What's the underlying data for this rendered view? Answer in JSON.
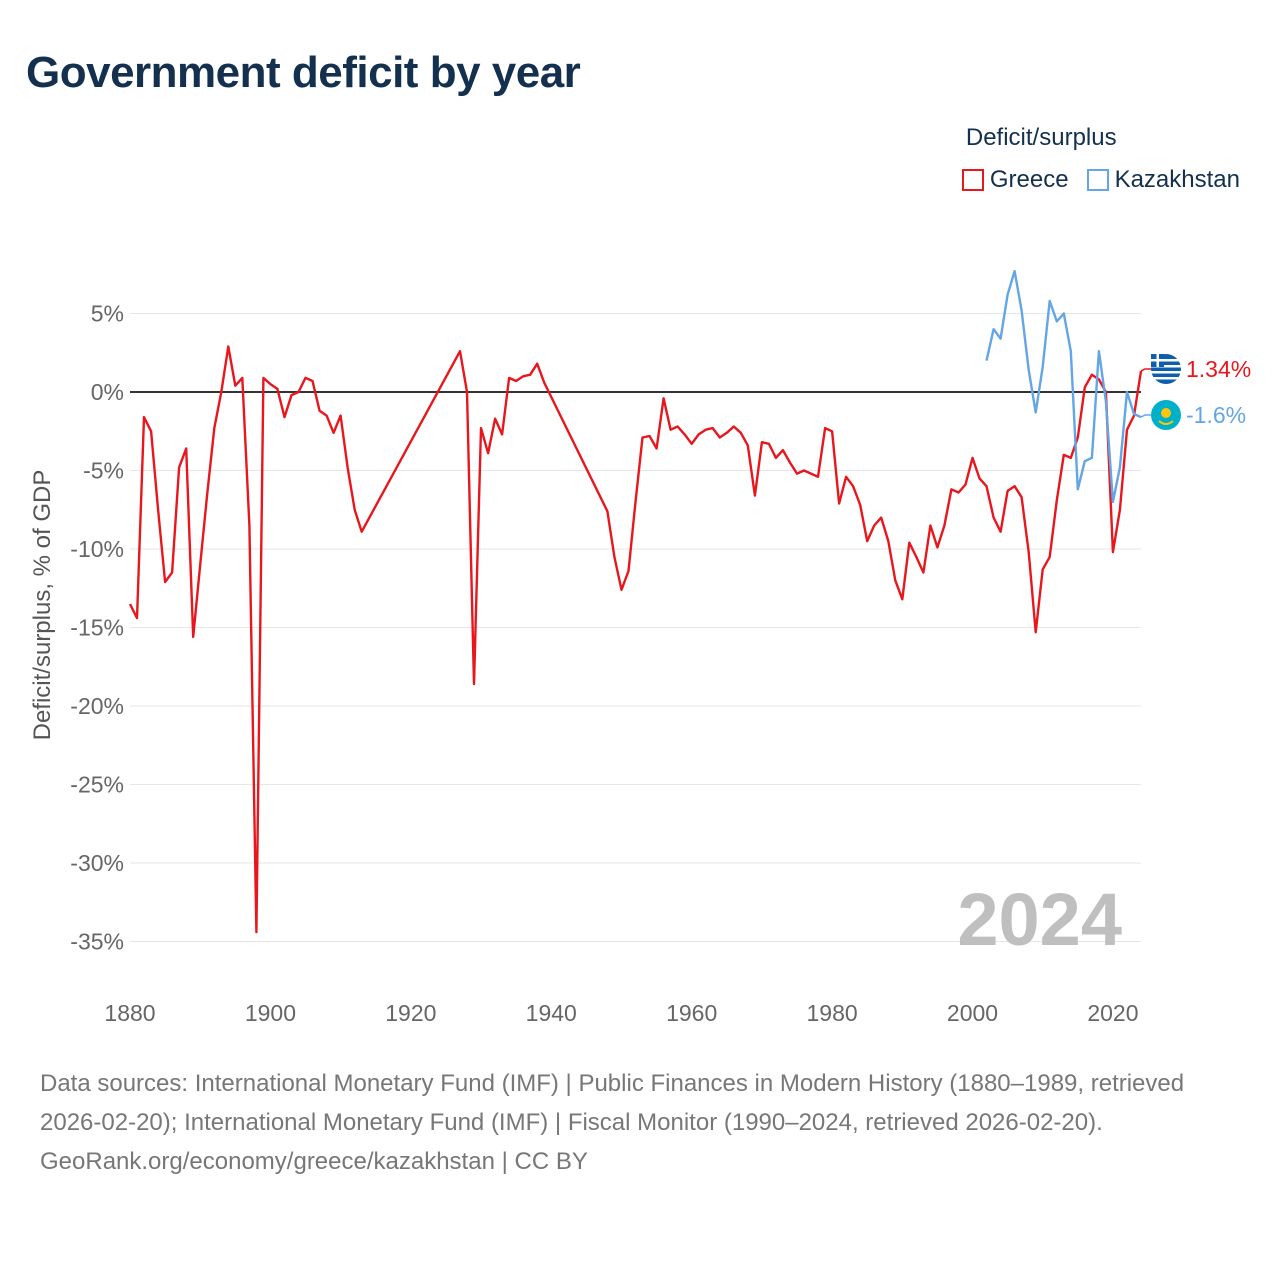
{
  "title": "Government deficit by year",
  "legend": {
    "title": "Deficit/surplus",
    "items": [
      {
        "label": "Greece",
        "color": "#e8171d"
      },
      {
        "label": "Kazakhstan",
        "color": "#63a5e6"
      }
    ]
  },
  "year_watermark": "2024",
  "footer": {
    "sources": "Data sources: International Monetary Fund (IMF) | Public Finances in Modern History (1880–1989, retrieved 2026-02-20); International Monetary Fund (IMF) | Fiscal Monitor (1990–2024, retrieved 2026-02-20).",
    "credit": "GeoRank.org/economy/greece/kazakhstan | CC BY"
  },
  "chart_data": {
    "type": "line",
    "title": "Government deficit by year",
    "xlabel": "",
    "ylabel": "Deficit/surplus, % of GDP",
    "xlim": [
      1880,
      2024
    ],
    "ylim": [
      -35,
      8
    ],
    "x_ticks": [
      1880,
      1900,
      1920,
      1940,
      1960,
      1980,
      2000,
      2020
    ],
    "y_ticks": [
      {
        "value": 5,
        "label": "5%"
      },
      {
        "value": 0,
        "label": "0%"
      },
      {
        "value": -5,
        "label": "-5%"
      },
      {
        "value": -10,
        "label": "-10%"
      },
      {
        "value": -15,
        "label": "-15%"
      },
      {
        "value": -20,
        "label": "-20%"
      },
      {
        "value": -25,
        "label": "-25%"
      },
      {
        "value": -30,
        "label": "-30%"
      },
      {
        "value": -35,
        "label": "-35%"
      }
    ],
    "grid": true,
    "legend_position": "top-right",
    "series": [
      {
        "name": "Greece",
        "color": "#e8171d",
        "end_label": "1.34%",
        "gaps_dashed": [
          [
            1912,
            1927
          ],
          [
            1938,
            1948
          ]
        ],
        "points": [
          [
            1880,
            -13.5
          ],
          [
            1881,
            -14.4
          ],
          [
            1882,
            -1.6
          ],
          [
            1883,
            -2.5
          ],
          [
            1884,
            -7.5
          ],
          [
            1885,
            -12.1
          ],
          [
            1886,
            -11.5
          ],
          [
            1887,
            -4.8
          ],
          [
            1888,
            -3.6
          ],
          [
            1889,
            -15.6
          ],
          [
            1890,
            -11.0
          ],
          [
            1891,
            -6.5
          ],
          [
            1892,
            -2.3
          ],
          [
            1893,
            0.0
          ],
          [
            1894,
            2.9
          ],
          [
            1895,
            0.4
          ],
          [
            1896,
            0.9
          ],
          [
            1897,
            -8.5
          ],
          [
            1898,
            -34.4
          ],
          [
            1899,
            0.9
          ],
          [
            1900,
            0.5
          ],
          [
            1901,
            0.2
          ],
          [
            1902,
            -1.6
          ],
          [
            1903,
            -0.2
          ],
          [
            1904,
            0.0
          ],
          [
            1905,
            0.9
          ],
          [
            1906,
            0.7
          ],
          [
            1907,
            -1.2
          ],
          [
            1908,
            -1.5
          ],
          [
            1909,
            -2.6
          ],
          [
            1910,
            -1.5
          ],
          [
            1911,
            -4.8
          ],
          [
            1912,
            -7.5
          ],
          [
            1913,
            -8.9
          ],
          [
            1927,
            2.6
          ],
          [
            1928,
            0.0
          ],
          [
            1929,
            -18.6
          ],
          [
            1930,
            -2.3
          ],
          [
            1931,
            -3.9
          ],
          [
            1932,
            -1.7
          ],
          [
            1933,
            -2.7
          ],
          [
            1934,
            0.9
          ],
          [
            1935,
            0.7
          ],
          [
            1936,
            1.0
          ],
          [
            1937,
            1.1
          ],
          [
            1938,
            1.8
          ],
          [
            1939,
            0.6
          ],
          [
            1948,
            -7.6
          ],
          [
            1949,
            -10.5
          ],
          [
            1950,
            -12.6
          ],
          [
            1951,
            -11.4
          ],
          [
            1952,
            -7.0
          ],
          [
            1953,
            -2.9
          ],
          [
            1954,
            -2.8
          ],
          [
            1955,
            -3.6
          ],
          [
            1956,
            -0.4
          ],
          [
            1957,
            -2.4
          ],
          [
            1958,
            -2.2
          ],
          [
            1959,
            -2.7
          ],
          [
            1960,
            -3.3
          ],
          [
            1961,
            -2.7
          ],
          [
            1962,
            -2.4
          ],
          [
            1963,
            -2.3
          ],
          [
            1964,
            -2.9
          ],
          [
            1965,
            -2.6
          ],
          [
            1966,
            -2.2
          ],
          [
            1967,
            -2.6
          ],
          [
            1968,
            -3.4
          ],
          [
            1969,
            -6.6
          ],
          [
            1970,
            -3.2
          ],
          [
            1971,
            -3.3
          ],
          [
            1972,
            -4.2
          ],
          [
            1973,
            -3.7
          ],
          [
            1974,
            -4.5
          ],
          [
            1975,
            -5.2
          ],
          [
            1976,
            -5.0
          ],
          [
            1977,
            -5.2
          ],
          [
            1978,
            -5.4
          ],
          [
            1979,
            -2.3
          ],
          [
            1980,
            -2.5
          ],
          [
            1981,
            -7.1
          ],
          [
            1982,
            -5.4
          ],
          [
            1983,
            -6.0
          ],
          [
            1984,
            -7.2
          ],
          [
            1985,
            -9.5
          ],
          [
            1986,
            -8.5
          ],
          [
            1987,
            -8.0
          ],
          [
            1988,
            -9.5
          ],
          [
            1989,
            -12.0
          ],
          [
            1990,
            -13.2
          ],
          [
            1991,
            -9.6
          ],
          [
            1992,
            -10.5
          ],
          [
            1993,
            -11.5
          ],
          [
            1994,
            -8.5
          ],
          [
            1995,
            -9.9
          ],
          [
            1996,
            -8.5
          ],
          [
            1997,
            -6.2
          ],
          [
            1998,
            -6.4
          ],
          [
            1999,
            -5.9
          ],
          [
            2000,
            -4.2
          ],
          [
            2001,
            -5.5
          ],
          [
            2002,
            -6.0
          ],
          [
            2003,
            -8.0
          ],
          [
            2004,
            -8.9
          ],
          [
            2005,
            -6.3
          ],
          [
            2006,
            -6.0
          ],
          [
            2007,
            -6.7
          ],
          [
            2008,
            -10.2
          ],
          [
            2009,
            -15.3
          ],
          [
            2010,
            -11.3
          ],
          [
            2011,
            -10.5
          ],
          [
            2012,
            -6.9
          ],
          [
            2013,
            -4.0
          ],
          [
            2014,
            -4.2
          ],
          [
            2015,
            -2.9
          ],
          [
            2016,
            0.3
          ],
          [
            2017,
            1.1
          ],
          [
            2018,
            0.8
          ],
          [
            2019,
            0.0
          ],
          [
            2020,
            -10.2
          ],
          [
            2021,
            -7.5
          ],
          [
            2022,
            -2.4
          ],
          [
            2023,
            -1.5
          ],
          [
            2024,
            1.34
          ]
        ]
      },
      {
        "name": "Kazakhstan",
        "color": "#63a5e6",
        "end_label": "-1.6%",
        "points": [
          [
            2002,
            2.0
          ],
          [
            2003,
            4.0
          ],
          [
            2004,
            3.4
          ],
          [
            2005,
            6.2
          ],
          [
            2006,
            7.7
          ],
          [
            2007,
            5.2
          ],
          [
            2008,
            1.4
          ],
          [
            2009,
            -1.3
          ],
          [
            2010,
            1.6
          ],
          [
            2011,
            5.8
          ],
          [
            2012,
            4.5
          ],
          [
            2013,
            5.0
          ],
          [
            2014,
            2.6
          ],
          [
            2015,
            -6.2
          ],
          [
            2016,
            -4.4
          ],
          [
            2017,
            -4.2
          ],
          [
            2018,
            2.6
          ],
          [
            2019,
            -0.6
          ],
          [
            2020,
            -7.0
          ],
          [
            2021,
            -4.8
          ],
          [
            2022,
            0.0
          ],
          [
            2023,
            -1.4
          ],
          [
            2024,
            -1.6
          ]
        ]
      }
    ]
  }
}
